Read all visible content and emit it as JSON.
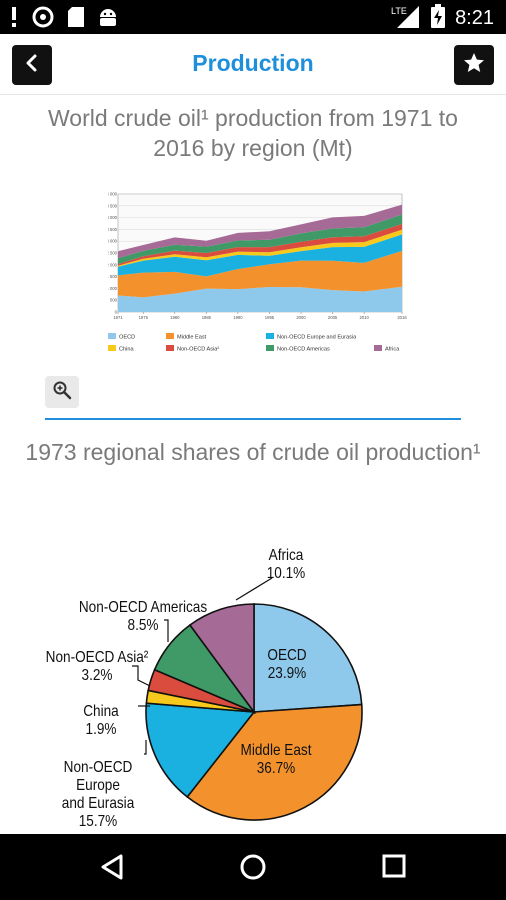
{
  "status_bar": {
    "time": "8:21",
    "network": "LTE"
  },
  "app_bar": {
    "title": "Production"
  },
  "section1": {
    "title": "World crude oil¹ production from 1971 to 2016 by region (Mt)"
  },
  "section2": {
    "title": "1973 regional shares of crude oil production¹"
  },
  "chart_data": [
    {
      "type": "area",
      "title": "World crude oil¹ production from 1971 to 2016 by region (Mt)",
      "x": [
        1971,
        1975,
        1980,
        1985,
        1990,
        1995,
        2000,
        2005,
        2010,
        2016
      ],
      "x_tick_labels": [
        "1971",
        "1975",
        "1980",
        "1985",
        "1990",
        "1995",
        "2000",
        "2005",
        "2010",
        "2016"
      ],
      "y_tick_labels": [
        "0",
        "500",
        "1 000",
        "1 500",
        "2 000",
        "2 500",
        "3 000",
        "3 500",
        "4 000",
        "4 500",
        "5 000"
      ],
      "ylim": [
        0,
        5000
      ],
      "grid": true,
      "legend_position": "bottom",
      "series": [
        {
          "name": "OECD",
          "color": "#8ec9ec",
          "values": [
            700,
            620,
            780,
            990,
            970,
            1060,
            1050,
            930,
            870,
            1070
          ]
        },
        {
          "name": "Middle East",
          "color": "#f3922d",
          "values": [
            850,
            1050,
            920,
            520,
            850,
            960,
            1130,
            1240,
            1210,
            1520
          ]
        },
        {
          "name": "Non-OECD Europe and Eurasia",
          "color": "#1ab0df",
          "values": [
            370,
            510,
            640,
            680,
            600,
            360,
            400,
            580,
            680,
            700
          ]
        },
        {
          "name": "China",
          "color": "#f6c91c",
          "values": [
            40,
            80,
            110,
            130,
            140,
            150,
            160,
            180,
            200,
            200
          ]
        },
        {
          "name": "Non-OECD Asia²",
          "color": "#d94c3e",
          "values": [
            70,
            100,
            150,
            180,
            190,
            220,
            240,
            240,
            250,
            240
          ]
        },
        {
          "name": "Non-OECD Americas",
          "color": "#3f9a67",
          "values": [
            250,
            230,
            250,
            270,
            280,
            310,
            350,
            370,
            380,
            400
          ]
        },
        {
          "name": "Africa",
          "color": "#a66a97",
          "values": [
            290,
            250,
            310,
            250,
            320,
            360,
            380,
            470,
            480,
            420
          ]
        }
      ]
    },
    {
      "type": "pie",
      "title": "1973 regional shares of crude oil production¹",
      "series": [
        {
          "name": "OECD",
          "value": 23.9,
          "label": "23.9%",
          "color": "#8ec9ec"
        },
        {
          "name": "Middle East",
          "value": 36.7,
          "label": "36.7%",
          "color": "#f3922d"
        },
        {
          "name": "Non-OECD Europe and Eurasia",
          "value": 15.7,
          "label": "15.7%",
          "color": "#1ab0df"
        },
        {
          "name": "China",
          "value": 1.9,
          "label": "1.9%",
          "color": "#f6c91c"
        },
        {
          "name": "Non-OECD Asia²",
          "value": 3.2,
          "label": "3.2%",
          "color": "#d94c3e"
        },
        {
          "name": "Non-OECD Americas",
          "value": 8.5,
          "label": "8.5%",
          "color": "#3f9a67"
        },
        {
          "name": "Africa",
          "value": 10.1,
          "label": "10.1%",
          "color": "#a66a97"
        }
      ],
      "label_lines": {
        "OECD": [
          "OECD",
          "23.9%"
        ],
        "Middle East": [
          "Middle East",
          "36.7%"
        ],
        "Non-OECD Europe and Eurasia": [
          "Non-OECD",
          "Europe",
          "and Eurasia",
          "15.7%"
        ],
        "China": [
          "China",
          "1.9%"
        ],
        "Non-OECD Asia²": [
          "Non-OECD Asia²",
          "3.2%"
        ],
        "Non-OECD Americas": [
          "Non-OECD Americas",
          "8.5%"
        ],
        "Africa": [
          "Africa",
          "10.1%"
        ]
      }
    }
  ],
  "icons": {
    "back": "chevron-left-icon",
    "favorite": "star-icon",
    "zoom": "zoom-in-icon",
    "nav_back": "triangle-back-icon",
    "nav_home": "circle-home-icon",
    "nav_recents": "square-recents-icon"
  }
}
